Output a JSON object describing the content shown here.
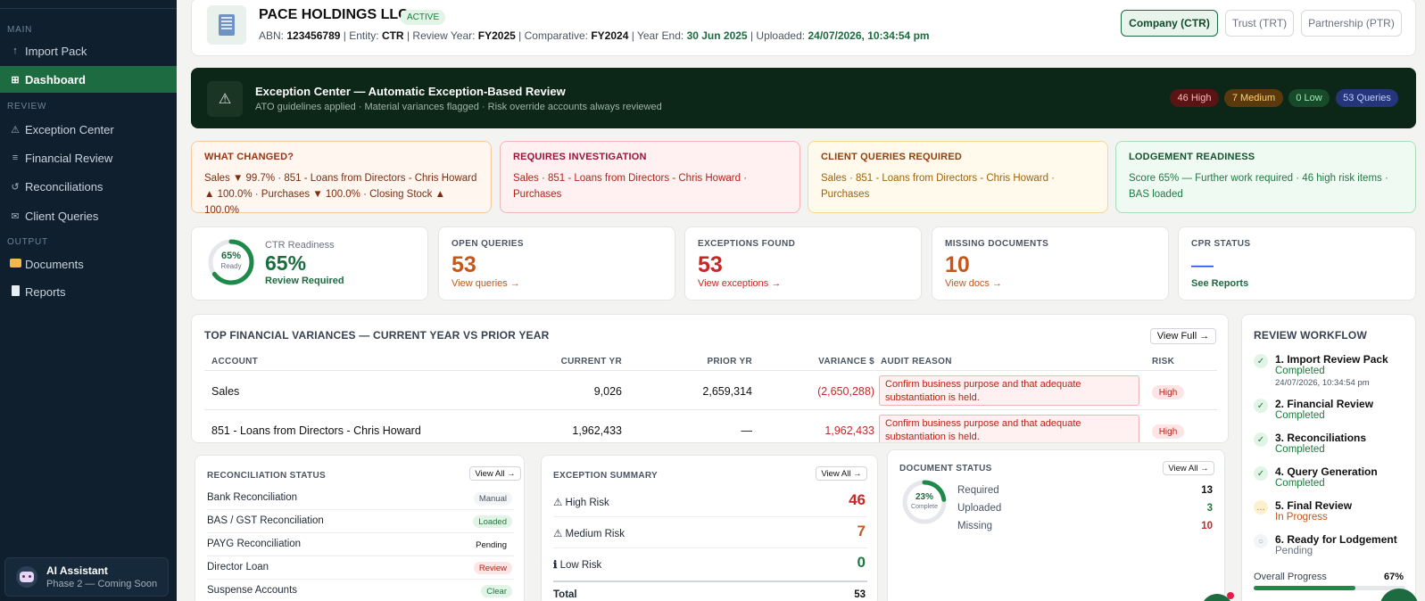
{
  "sidebar": {
    "sections": {
      "main": "MAIN",
      "review": "REVIEW",
      "output": "OUTPUT"
    },
    "items": [
      {
        "label": "Import Pack",
        "icon": "upload-icon"
      },
      {
        "label": "Dashboard",
        "icon": "grid-icon",
        "active": true
      },
      {
        "label": "Exception Center",
        "icon": "warning-icon"
      },
      {
        "label": "Financial Review",
        "icon": "list-icon"
      },
      {
        "label": "Reconciliations",
        "icon": "refresh-icon"
      },
      {
        "label": "Client Queries",
        "icon": "mail-icon"
      },
      {
        "label": "Documents",
        "icon": "folder-icon"
      },
      {
        "label": "Reports",
        "icon": "document-icon"
      }
    ],
    "assistant": {
      "title": "AI Assistant",
      "subtitle": "Phase 2 — Coming Soon"
    }
  },
  "header": {
    "company": "PACE HOLDINGS LLC",
    "status": "ACTIVE",
    "meta": {
      "abn_label": "ABN:",
      "abn": "123456789",
      "entity_label": "Entity:",
      "entity": "CTR",
      "year_label": "Review Year:",
      "year": "FY2025",
      "comp_label": "Comparative:",
      "comp": "FY2024",
      "end_label": "Year End:",
      "end": "30 Jun 2025",
      "up_label": "Uploaded:",
      "uploaded": "24/07/2026, 10:34:54 pm"
    },
    "entity_buttons": [
      "Company (CTR)",
      "Trust (TRT)",
      "Partnership (PTR)"
    ]
  },
  "exception_center": {
    "title": "Exception Center — Automatic Exception-Based Review",
    "subtitle": "ATO guidelines applied · Material variances flagged · Risk override accounts always reviewed",
    "pills": {
      "high": "46 High",
      "medium": "7 Medium",
      "low": "0 Low",
      "queries": "53 Queries"
    }
  },
  "insights": {
    "changed": {
      "title": "WHAT CHANGED?",
      "body": "Sales ▼ 99.7% · 851 - Loans from Directors - Chris Howard ▲ 100.0% · Purchases ▼ 100.0% · Closing Stock ▲ 100.0%"
    },
    "investigation": {
      "title": "REQUIRES INVESTIGATION",
      "body": "Sales · 851 - Loans from Directors - Chris Howard · Purchases"
    },
    "queries": {
      "title": "CLIENT QUERIES REQUIRED",
      "body": "Sales · 851 - Loans from Directors - Chris Howard · Purchases"
    },
    "lodgement": {
      "title": "LODGEMENT READINESS",
      "body": "Score 65% — Further work required · 46 high risk items · BAS loaded"
    }
  },
  "kpis": {
    "readiness": {
      "ring_value": "65%",
      "ring_label": "Ready",
      "label": "CTR Readiness",
      "value": "65%",
      "status": "Review Required",
      "progress": 0.65
    },
    "open_queries": {
      "label": "OPEN QUERIES",
      "value": "53",
      "link": "View queries →"
    },
    "exceptions": {
      "label": "EXCEPTIONS FOUND",
      "value": "53",
      "link": "View exceptions →"
    },
    "missing_docs": {
      "label": "MISSING DOCUMENTS",
      "value": "10",
      "link": "View docs →"
    },
    "cpr": {
      "label": "CPR STATUS",
      "value": "—",
      "link": "See Reports"
    }
  },
  "variances": {
    "title": "TOP FINANCIAL VARIANCES — CURRENT YEAR VS PRIOR YEAR",
    "view_full": "View Full →",
    "columns": [
      "ACCOUNT",
      "CURRENT YR",
      "PRIOR YR",
      "VARIANCE $",
      "AUDIT REASON",
      "RISK"
    ],
    "rows": [
      {
        "account": "Sales",
        "current": "9,026",
        "prior": "2,659,314",
        "variance": "(2,650,288)",
        "reason": "Confirm business purpose and that adequate substantiation is held.",
        "risk": "High"
      },
      {
        "account": "851 - Loans from Directors - Chris Howard",
        "current": "1,962,433",
        "prior": "—",
        "variance": "1,962,433",
        "reason": "Confirm business purpose and that adequate substantiation is held.",
        "risk": "High"
      }
    ]
  },
  "workflow": {
    "title": "REVIEW WORKFLOW",
    "steps": [
      {
        "name": "1. Import Review Pack",
        "status": "Completed",
        "timestamp": "24/07/2026, 10:34:54 pm"
      },
      {
        "name": "2. Financial Review",
        "status": "Completed"
      },
      {
        "name": "3. Reconciliations",
        "status": "Completed"
      },
      {
        "name": "4. Query Generation",
        "status": "Completed"
      },
      {
        "name": "5. Final Review",
        "status": "In Progress"
      },
      {
        "name": "6. Ready for Lodgement",
        "status": "Pending"
      }
    ],
    "overall_label": "Overall Progress",
    "overall_value": "67%",
    "progress": 0.67
  },
  "reconciliation": {
    "title": "RECONCILIATION STATUS",
    "view_all": "View All →",
    "rows": [
      {
        "label": "Bank Reconciliation",
        "status": "Manual"
      },
      {
        "label": "BAS / GST Reconciliation",
        "status": "Loaded"
      },
      {
        "label": "PAYG Reconciliation",
        "status": "Pending"
      },
      {
        "label": "Director Loan",
        "status": "Review"
      },
      {
        "label": "Suspense Accounts",
        "status": "Clear"
      }
    ]
  },
  "exception_summary": {
    "title": "EXCEPTION SUMMARY",
    "view_all": "View All →",
    "rows": [
      {
        "label": "High Risk",
        "value": "46"
      },
      {
        "label": "Medium Risk",
        "value": "7"
      },
      {
        "label": "Low Risk",
        "value": "0"
      }
    ],
    "total_label": "Total",
    "total_value": "53"
  },
  "document_status": {
    "title": "DOCUMENT STATUS",
    "view_all": "View All →",
    "ring_value": "23%",
    "ring_label": "Complete",
    "progress": 0.23,
    "rows": [
      {
        "label": "Required",
        "value": "13"
      },
      {
        "label": "Uploaded",
        "value": "3"
      },
      {
        "label": "Missing",
        "value": "10"
      }
    ]
  },
  "colors": {
    "sidebar_bg": "#0f1f2e",
    "accent_green": "#1d6b40",
    "high": "#c62828",
    "medium": "#c2581a",
    "low": "#1b7a3e",
    "banner_bg": "#0c2617"
  }
}
